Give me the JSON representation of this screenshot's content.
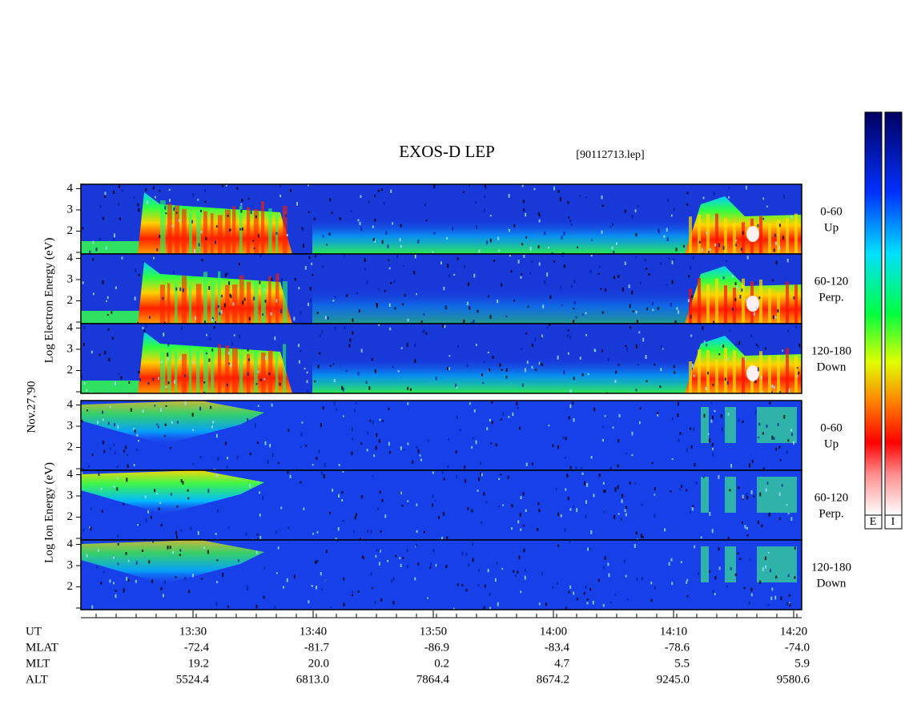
{
  "header": {
    "title": "EXOS-D LEP",
    "file": "[90112713.lep]"
  },
  "date": "Nov.27,'90",
  "electron": {
    "axis_label": "Log Electron Energy (eV)",
    "yticks": [
      2,
      3,
      4
    ],
    "panels": [
      {
        "range": "0-60",
        "direction": "Up"
      },
      {
        "range": "60-120",
        "direction": "Perp."
      },
      {
        "range": "120-180",
        "direction": "Down"
      }
    ]
  },
  "ion": {
    "axis_label": "Log Ion Energy (eV)",
    "yticks": [
      2,
      3,
      4
    ],
    "panels": [
      {
        "range": "0-60",
        "direction": "Up"
      },
      {
        "range": "60-120",
        "direction": "Perp."
      },
      {
        "range": "120-180",
        "direction": "Down"
      }
    ]
  },
  "orbit": {
    "rows": [
      {
        "label": "UT",
        "values": [
          "13:30",
          "13:40",
          "13:50",
          "14:00",
          "14:10",
          "14:20"
        ]
      },
      {
        "label": "MLAT",
        "values": [
          "-72.4",
          "-81.7",
          "-86.9",
          "-83.4",
          "-78.6",
          "-74.0"
        ]
      },
      {
        "label": "MLT",
        "values": [
          "19.2",
          "20.0",
          "0.2",
          "4.7",
          "5.5",
          "5.9"
        ]
      },
      {
        "label": "ALT",
        "values": [
          "5524.4",
          "6813.0",
          "7864.4",
          "8674.2",
          "9245.0",
          "9580.6"
        ]
      }
    ]
  },
  "colorbar": {
    "labels": [
      "E",
      "I"
    ]
  }
}
